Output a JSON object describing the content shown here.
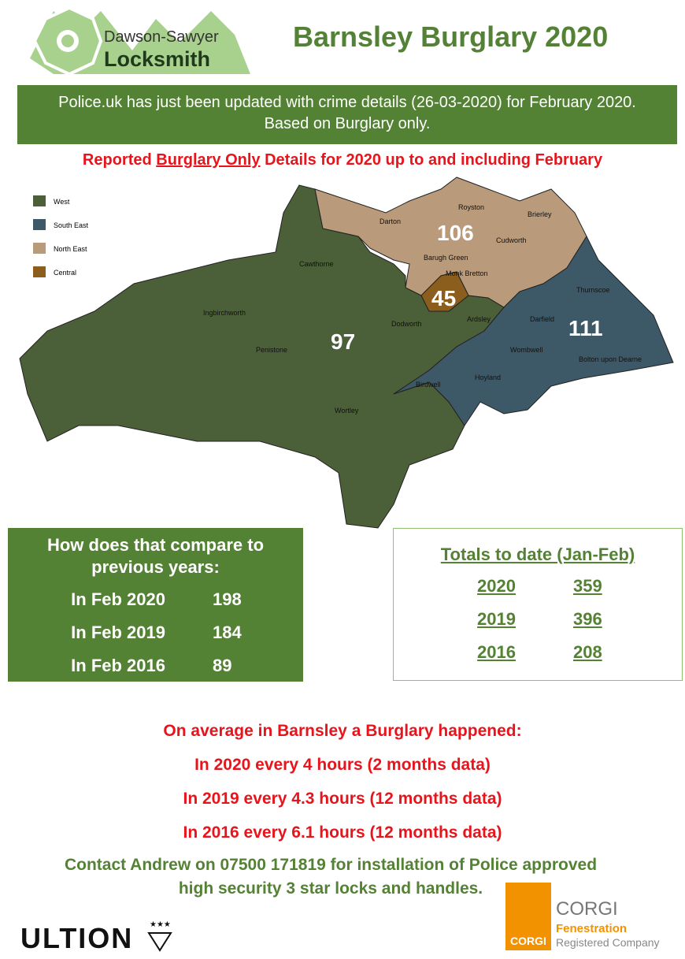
{
  "header": {
    "logo_line1": "Dawson-Sawyer",
    "logo_line2": "Locksmith",
    "title": "Barnsley Burglary 2020"
  },
  "banner": "Police.uk has just been updated with crime details (26-03-2020) for February 2020. Based on Burglary only.",
  "subtitle": {
    "before": "Reported",
    "underlined": "Burglary Only",
    "after": "Details for 2020 up to and including February"
  },
  "map": {
    "legend": [
      {
        "label": "West",
        "color": "#4b5f38"
      },
      {
        "label": "South East",
        "color": "#3d5967"
      },
      {
        "label": "North East",
        "color": "#b99b7c"
      },
      {
        "label": "Central",
        "color": "#8c5e1e"
      }
    ],
    "region_counts": [
      97,
      111,
      106,
      45
    ],
    "places": [
      "Darton",
      "Royston",
      "Brierley",
      "Cudworth",
      "Barugh Green",
      "Monk Bretton",
      "Cawthorne",
      "Thurnscoe",
      "Ingbirchworth",
      "Dodworth",
      "Ardsley",
      "Darfield",
      "Penistone",
      "Wombwell",
      "Bolton upon Dearne",
      "Hoyland",
      "Birdwell",
      "Wortley"
    ]
  },
  "compare": {
    "title": "How does that compare to previous years:",
    "rows": [
      [
        "In Feb 2020",
        198
      ],
      [
        "In Feb 2019",
        184
      ],
      [
        "In Feb 2016",
        89
      ]
    ]
  },
  "totals": {
    "title": "Totals to date (Jan-Feb)",
    "rows": [
      [
        2020,
        359
      ],
      [
        2019,
        396
      ],
      [
        2016,
        208
      ]
    ]
  },
  "average": {
    "title": "On average in Barnsley a Burglary happened:",
    "lines": [
      "In 2020 every 4 hours (2 months data)",
      "In 2019 every 4.3 hours (12 months data)",
      "In 2016 every 6.1 hours (12 months data)"
    ]
  },
  "contact": "Contact Andrew on 07500 171819 for installation of Police approved high security 3 star locks and handles.",
  "logos": {
    "ultion": "ULTION",
    "corgi_badge": "CORGI",
    "corgi_name": "CORGI",
    "corgi_line2": "Fenestration",
    "corgi_line3": "Registered Company"
  }
}
